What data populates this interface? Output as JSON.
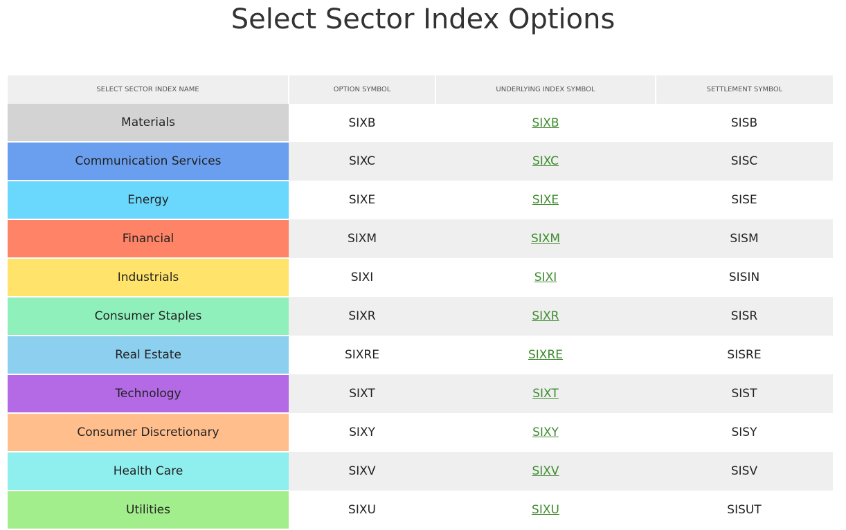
{
  "page": {
    "title": "Select Sector Index Options"
  },
  "table": {
    "headers": [
      "SELECT SECTOR INDEX NAME",
      "OPTION SYMBOL",
      "UNDERLYING INDEX SYMBOL",
      "SETTLEMENT SYMBOL"
    ],
    "link_color": "#3d8b2e",
    "rows": [
      {
        "name": "Materials",
        "color": "#d3d3d3",
        "option": "SIXB",
        "underlying": "SIXB",
        "settlement": "SISB"
      },
      {
        "name": "Communication Services",
        "color": "#6a9ff0",
        "option": "SIXC",
        "underlying": "SIXC",
        "settlement": "SISC"
      },
      {
        "name": "Energy",
        "color": "#6ad7fd",
        "option": "SIXE",
        "underlying": "SIXE",
        "settlement": "SISE"
      },
      {
        "name": "Financial",
        "color": "#ff8366",
        "option": "SIXM",
        "underlying": "SIXM",
        "settlement": "SISM"
      },
      {
        "name": "Industrials",
        "color": "#ffe36a",
        "option": "SIXI",
        "underlying": "SIXI",
        "settlement": "SISIN"
      },
      {
        "name": "Consumer Staples",
        "color": "#8ff0bc",
        "option": "SIXR",
        "underlying": "SIXR",
        "settlement": "SISR"
      },
      {
        "name": "Real Estate",
        "color": "#8ccfef",
        "option": "SIXRE",
        "underlying": "SIXRE",
        "settlement": "SISRE"
      },
      {
        "name": "Technology",
        "color": "#b36ae4",
        "option": "SIXT",
        "underlying": "SIXT",
        "settlement": "SIST"
      },
      {
        "name": "Consumer Discretionary",
        "color": "#ffbe8c",
        "option": "SIXY",
        "underlying": "SIXY",
        "settlement": "SISY"
      },
      {
        "name": "Health Care",
        "color": "#8feeee",
        "option": "SIXV",
        "underlying": "SIXV",
        "settlement": "SISV"
      },
      {
        "name": "Utilities",
        "color": "#a3ee8c",
        "option": "SIXU",
        "underlying": "SIXU",
        "settlement": "SISUT"
      }
    ]
  }
}
